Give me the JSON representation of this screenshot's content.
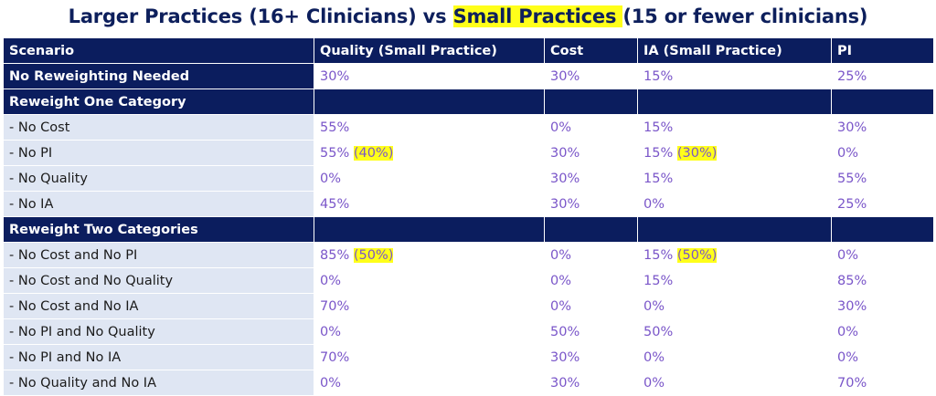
{
  "title": {
    "part1": "Larger Practices (16+ Clinicians) vs ",
    "highlight": "Small Practices ",
    "part2": "(15 or fewer clinicians)"
  },
  "headers": [
    "Scenario",
    "Quality (Small Practice)",
    "Cost",
    "IA (Small Practice)",
    "PI"
  ],
  "rows": {
    "no_reweight": {
      "label": "No Reweighting Needed",
      "quality": "30%",
      "cost": "30%",
      "ia": "15%",
      "pi": "25%"
    },
    "sec_one": {
      "label": "Reweight One Category"
    },
    "no_cost": {
      "label": "- No Cost",
      "quality": "55%",
      "cost": "0%",
      "ia": "15%",
      "pi": "30%"
    },
    "no_pi": {
      "label": "- No PI",
      "quality": "55%",
      "quality_small": "(40%)",
      "cost": "30%",
      "ia": "15%",
      "ia_small": "(30%)",
      "pi": "0%"
    },
    "no_quality": {
      "label": "- No Quality",
      "quality": "0%",
      "cost": "30%",
      "ia": "15%",
      "pi": "55%"
    },
    "no_ia": {
      "label": "- No IA",
      "quality": "45%",
      "cost": "30%",
      "ia": "0%",
      "pi": "25%"
    },
    "sec_two": {
      "label": "Reweight Two Categories"
    },
    "no_cost_pi": {
      "label": "- No Cost and No PI",
      "quality": "85%",
      "quality_small": "(50%)",
      "cost": "0%",
      "ia": "15%",
      "ia_small": "(50%)",
      "pi": "0%"
    },
    "no_cost_quality": {
      "label": "- No Cost and No Quality",
      "quality": "0%",
      "cost": "0%",
      "ia": "15%",
      "pi": "85%"
    },
    "no_cost_ia": {
      "label": "- No Cost and No IA",
      "quality": "70%",
      "cost": "0%",
      "ia": "0%",
      "pi": "30%"
    },
    "no_pi_quality": {
      "label": "- No PI and No Quality",
      "quality": "0%",
      "cost": "50%",
      "ia": "50%",
      "pi": "0%"
    },
    "no_pi_ia": {
      "label": "- No PI and No IA",
      "quality": "70%",
      "cost": "30%",
      "ia": "0%",
      "pi": "0%"
    },
    "no_quality_ia": {
      "label": "- No Quality and No IA",
      "quality": "0%",
      "cost": "30%",
      "ia": "0%",
      "pi": "70%"
    }
  },
  "colors": {
    "navy": "#0b1d5e",
    "label_bg": "#dfe6f3",
    "value_text": "#7a56c9",
    "highlight": "#ffff1a"
  }
}
